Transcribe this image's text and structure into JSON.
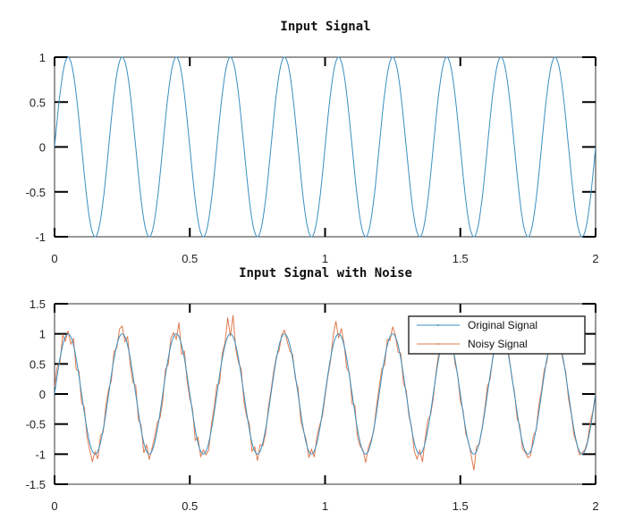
{
  "chart_data": [
    {
      "type": "line",
      "title": "Input Signal",
      "xlabel": "",
      "ylabel": "",
      "xlim": [
        0,
        2
      ],
      "ylim": [
        -1,
        1
      ],
      "xticks": [
        "0",
        "0.5",
        "1",
        "1.5",
        "2"
      ],
      "yticks": [
        "1",
        "0.5",
        "0",
        "-0.5",
        "-1"
      ],
      "xtick_values": [
        0,
        0.5,
        1,
        1.5,
        2
      ],
      "ytick_values": [
        1,
        0.5,
        0,
        -0.5,
        -1
      ],
      "grid": false,
      "series": [
        {
          "name": "Input Signal",
          "color": "#3a8fc0",
          "function": "sine",
          "amplitude": 1,
          "frequency_hz": 5
        }
      ]
    },
    {
      "type": "line",
      "title": "Input Signal with Noise",
      "xlabel": "",
      "ylabel": "",
      "xlim": [
        0,
        2
      ],
      "ylim": [
        -1.5,
        1.5
      ],
      "xticks": [
        "0",
        "0.5",
        "1",
        "1.5",
        "2"
      ],
      "yticks": [
        "1.5",
        "1",
        "0.5",
        "0",
        "-0.5",
        "-1",
        "-1.5"
      ],
      "xtick_values": [
        0,
        0.5,
        1,
        1.5,
        2
      ],
      "ytick_values": [
        1.5,
        1,
        0.5,
        0,
        -0.5,
        -1,
        -1.5
      ],
      "grid": false,
      "legend_position": "top-right",
      "series": [
        {
          "name": "Original Signal",
          "color": "#3a8fc0",
          "function": "sine",
          "amplitude": 1,
          "frequency_hz": 5
        },
        {
          "name": "Noisy Signal",
          "color": "#e07b50",
          "x_step": 0.01,
          "values": [
            0.12,
            0.45,
            0.52,
            0.98,
            0.88,
            1.05,
            0.83,
            0.92,
            0.41,
            0.38,
            -0.15,
            -0.22,
            -0.71,
            -0.93,
            -1.12,
            -0.96,
            -1.08,
            -0.69,
            -0.64,
            -0.18,
            0.08,
            0.22,
            0.71,
            0.76,
            1.08,
            1.13,
            0.87,
            0.95,
            0.47,
            0.19,
            0.14,
            -0.43,
            -0.52,
            -0.98,
            -0.85,
            -1.09,
            -0.91,
            -0.72,
            -0.48,
            -0.39,
            -0.11,
            0.41,
            0.49,
            0.93,
            1.02,
            0.91,
            1.19,
            0.66,
            0.71,
            0.22,
            -0.08,
            -0.25,
            -0.77,
            -0.72,
            -1.04,
            -0.93,
            -1.01,
            -0.93,
            -0.51,
            -0.22,
            0.15,
            0.18,
            0.68,
            0.85,
            1.27,
            0.96,
            1.31,
            0.74,
            0.52,
            0.41,
            -0.13,
            -0.38,
            -0.49,
            -0.95,
            -0.88,
            -1.11,
            -0.84,
            -0.86,
            -0.66,
            -0.24,
            0.05,
            0.37,
            0.63,
            0.72,
            0.99,
            1.06,
            0.88,
            0.71,
            0.66,
            0.26,
            0.09,
            -0.44,
            -0.61,
            -0.76,
            -1.06,
            -0.92,
            -1.05,
            -0.71,
            -0.52,
            -0.37,
            -0.04,
            0.28,
            0.55,
            0.97,
            1.21,
            0.93,
            1.09,
            0.84,
            0.43,
            0.35,
            -0.16,
            -0.19,
            -0.72,
            -0.87,
            -0.93,
            -1.14,
            -0.89,
            -0.77,
            -0.62,
            -0.21,
            0.11,
            0.42,
            0.48,
            0.91,
            0.89,
            1.12,
            0.98,
            0.69,
            0.68,
            0.17,
            0.06,
            -0.37,
            -0.55,
            -0.96,
            -1.08,
            -0.94,
            -1.13,
            -0.75,
            -0.43,
            -0.35,
            -0.07,
            0.35,
            0.67,
            0.74,
            1.05,
            1.25,
            0.86,
            0.93,
            0.51,
            0.33,
            -0.12,
            -0.27,
            -0.66,
            -0.79,
            -1.02,
            -1.27,
            -0.87,
            -0.84,
            -0.57,
            -0.26,
            0.13,
            0.24,
            0.61,
            0.88,
            1.03,
            0.95,
            1.16,
            0.72,
            0.64,
            0.28,
            0.03,
            -0.41,
            -0.53,
            -0.91,
            -0.97,
            -1.06,
            -1.02,
            -0.69,
            -0.61,
            -0.19,
            0.06,
            0.39,
            0.54,
            0.86,
            1.09,
            1.17,
            0.91,
            0.78,
            0.55,
            0.36,
            -0.09,
            -0.33,
            -0.68,
            -0.82,
            -1.01,
            -0.98,
            -0.93,
            -0.79,
            -0.47,
            -0.28,
            0.02
          ]
        }
      ]
    }
  ]
}
